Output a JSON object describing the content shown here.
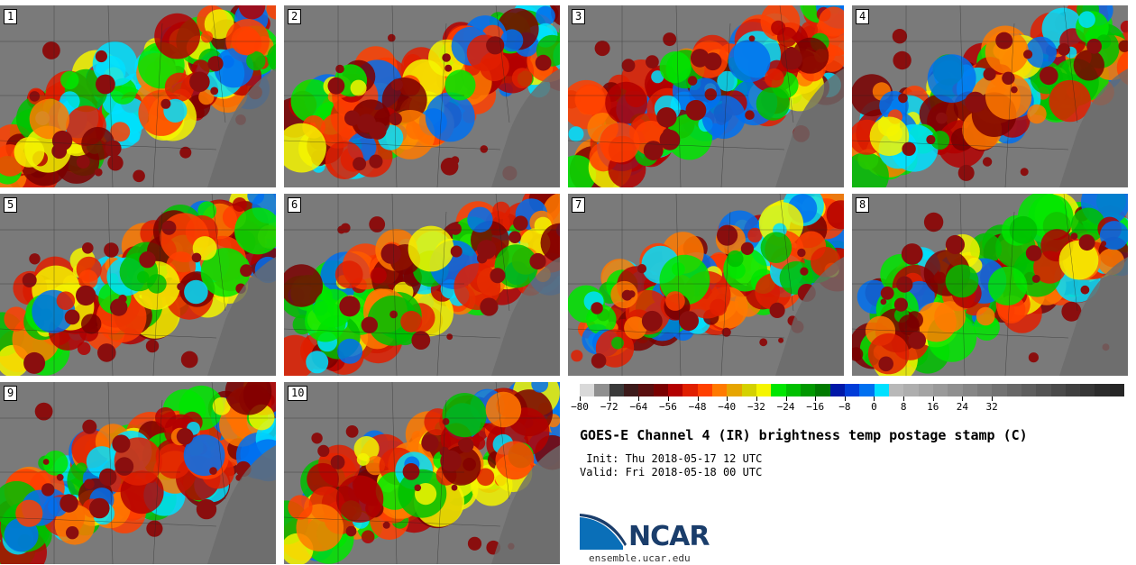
{
  "panels": [
    {
      "label": "1"
    },
    {
      "label": "2"
    },
    {
      "label": "3"
    },
    {
      "label": "4"
    },
    {
      "label": "5"
    },
    {
      "label": "6"
    },
    {
      "label": "7"
    },
    {
      "label": "8"
    },
    {
      "label": "9"
    },
    {
      "label": "10"
    }
  ],
  "colorbar": {
    "colors": [
      "#d9d9d9",
      "#8f8f8f",
      "#3a3a3a",
      "#3c1a1a",
      "#5a0f0f",
      "#7a0000",
      "#b30000",
      "#e01f00",
      "#ff4000",
      "#ff7a00",
      "#e6a500",
      "#d4d100",
      "#f5f500",
      "#00e600",
      "#00c000",
      "#009800",
      "#007a00",
      "#0018a8",
      "#003cd8",
      "#0070f0",
      "#00e0ff",
      "#b8b8b8",
      "#aeaeae",
      "#a4a4a4",
      "#9a9a9a",
      "#909090",
      "#868686",
      "#7c7c7c",
      "#727272",
      "#686868",
      "#5e5e5e",
      "#545454",
      "#4a4a4a",
      "#404040",
      "#363636",
      "#2c2c2c",
      "#262626"
    ],
    "ticks": [
      "−80",
      "−72",
      "−64",
      "−56",
      "−48",
      "−40",
      "−32",
      "−24",
      "−16",
      "−8",
      "0",
      "8",
      "16",
      "24",
      "32"
    ]
  },
  "title": "GOES-E Channel 4 (IR) brightness temp postage stamp (C)",
  "init": " Init: Thu 2018-05-17 12 UTC",
  "valid": "Valid: Fri 2018-05-18 00 UTC",
  "logo": {
    "text": "NCAR",
    "url": "ensemble.ucar.edu",
    "brand_color": "#1a3d6b",
    "accent_color": "#0a6fb8"
  }
}
